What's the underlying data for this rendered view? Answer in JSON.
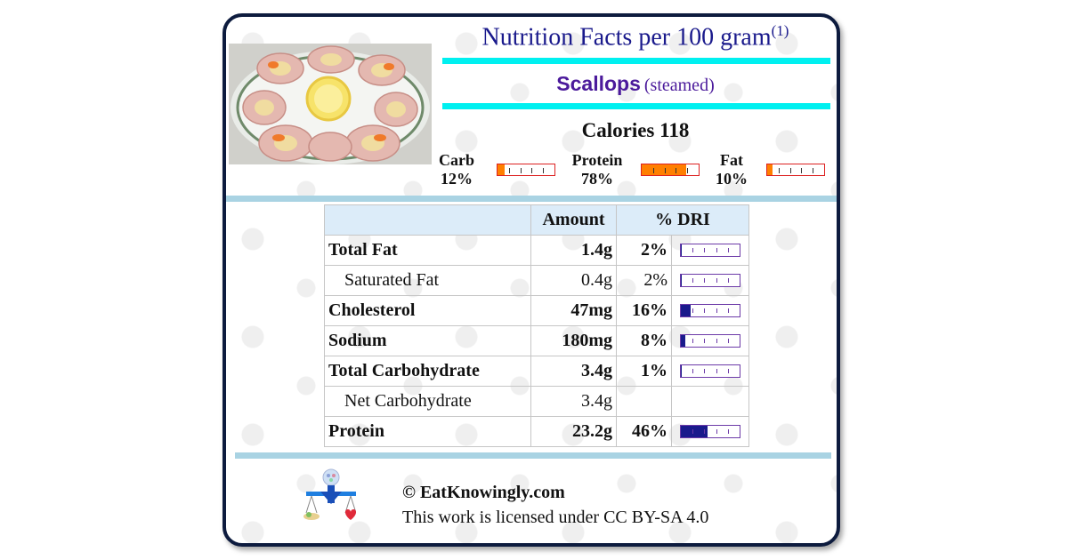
{
  "header": {
    "title": "Nutrition Facts per 100 gram",
    "footnote_mark": "(1)"
  },
  "food": {
    "name": "Scallops",
    "preparation": "(steamed)"
  },
  "photo": {
    "icon": "scallops-plate-photo"
  },
  "calories": "Calories 118",
  "macros": [
    {
      "label": "Carb",
      "percent": "12%",
      "fraction": 0.12
    },
    {
      "label": "Protein",
      "percent": "78%",
      "fraction": 0.78
    },
    {
      "label": "Fat",
      "percent": "10%",
      "fraction": 0.1
    }
  ],
  "table": {
    "headers": {
      "amount": "Amount",
      "dri": "% DRI"
    },
    "rows": [
      {
        "name": "Total Fat",
        "amount": "1.4g",
        "dri": "2%",
        "fraction": 0.02,
        "bold": true
      },
      {
        "name": "Saturated Fat",
        "amount": "0.4g",
        "dri": "2%",
        "fraction": 0.02,
        "bold": false
      },
      {
        "name": "Cholesterol",
        "amount": "47mg",
        "dri": "16%",
        "fraction": 0.16,
        "bold": true
      },
      {
        "name": "Sodium",
        "amount": "180mg",
        "dri": "8%",
        "fraction": 0.08,
        "bold": true
      },
      {
        "name": "Total Carbohydrate",
        "amount": "3.4g",
        "dri": "1%",
        "fraction": 0.01,
        "bold": true
      },
      {
        "name": "Net Carbohydrate",
        "amount": "3.4g",
        "dri": "",
        "fraction": null,
        "bold": false
      },
      {
        "name": "Protein",
        "amount": "23.2g",
        "dri": "46%",
        "fraction": 0.46,
        "bold": true
      }
    ]
  },
  "footer": {
    "site": "© EatKnowingly.com",
    "license": "This work is licensed under CC BY-SA 4.0",
    "logo_icon": "balance-scale-logo-icon"
  },
  "colors": {
    "accent_cyan": "#00f0f0",
    "separator_blue": "#a9d3e3",
    "title_blue": "#1a1a8c",
    "macro_orange": "#ff7f00",
    "border_navy": "#0d1b3e"
  }
}
